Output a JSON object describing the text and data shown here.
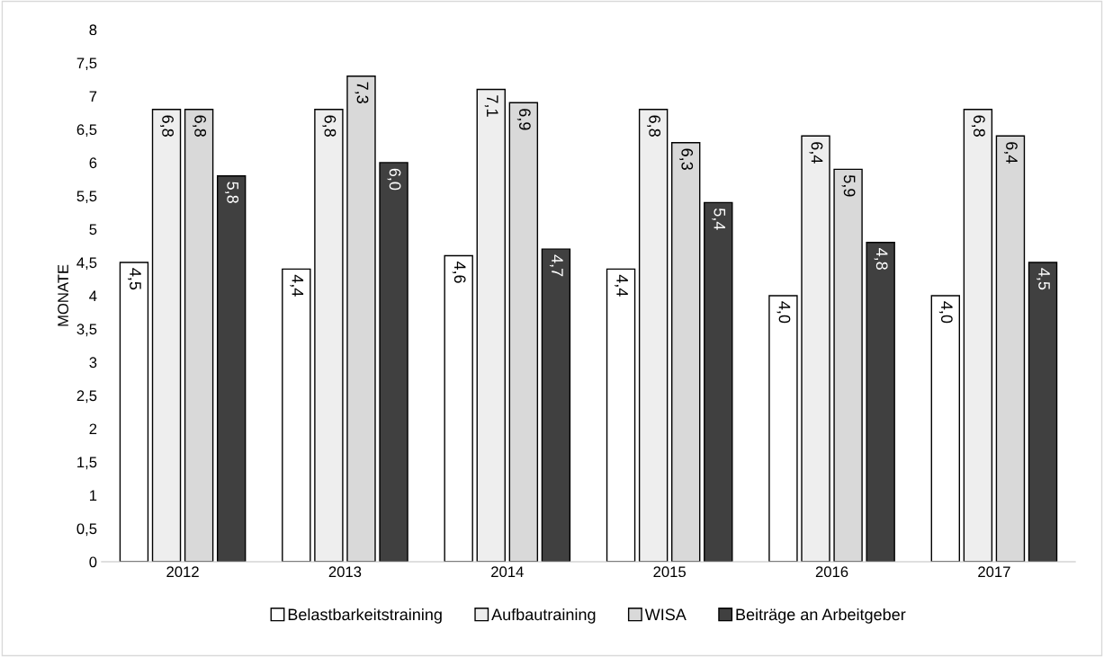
{
  "chart_data": {
    "type": "bar",
    "ylabel": "MONATE",
    "categories": [
      "2012",
      "2013",
      "2014",
      "2015",
      "2016",
      "2017"
    ],
    "series": [
      {
        "name": "Belastbarkeitstraining",
        "color": "#ffffff",
        "values": [
          4.5,
          4.4,
          4.6,
          4.4,
          4.0,
          4.0
        ],
        "value_labels": [
          "4,5",
          "4,4",
          "4,6",
          "4,4",
          "4,0",
          "4,0"
        ]
      },
      {
        "name": "Aufbautraining",
        "color": "#eeeeee",
        "values": [
          6.8,
          6.8,
          7.1,
          6.8,
          6.4,
          6.8
        ],
        "value_labels": [
          "6,8",
          "6,8",
          "7,1",
          "6,8",
          "6,4",
          "6,8"
        ]
      },
      {
        "name": "WISA",
        "color": "#d9d9d9",
        "values": [
          6.8,
          7.3,
          6.9,
          6.3,
          5.9,
          6.4
        ],
        "value_labels": [
          "6,8",
          "7,3",
          "6,9",
          "6,3",
          "5,9",
          "6,4"
        ]
      },
      {
        "name": "Beiträge an Arbeitgeber",
        "color": "#404040",
        "values": [
          5.8,
          6.0,
          4.7,
          5.4,
          4.8,
          4.5
        ],
        "value_labels": [
          "5,8",
          "6,0",
          "4,7",
          "5,4",
          "4,8",
          "4,5"
        ]
      }
    ],
    "ylim": [
      0,
      8
    ],
    "yticks": [
      0,
      {
        "value": 0.5,
        "label": "0,5"
      },
      1,
      {
        "value": 1.5,
        "label": "1,5"
      },
      2,
      {
        "value": 2.5,
        "label": "2,5"
      },
      3,
      {
        "value": 3.5,
        "label": "3,5"
      },
      4,
      {
        "value": 4.5,
        "label": "4,5"
      },
      5,
      {
        "value": 5.5,
        "label": "5,5"
      },
      6,
      {
        "value": 6.5,
        "label": "6,5"
      },
      7,
      {
        "value": 7.5,
        "label": "7,5"
      },
      8
    ],
    "grid": false,
    "legend": "bottom"
  }
}
